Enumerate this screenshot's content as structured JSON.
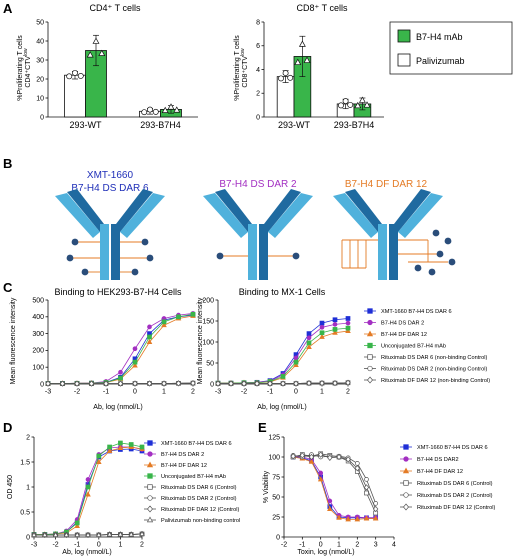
{
  "panels": {
    "A": {
      "label": "A",
      "charts": [
        {
          "type": "bar",
          "title": "CD4⁺ T cells",
          "ylabel": "%Proliferating T cells",
          "ylabel2": "CD4⁺CTV",
          "ylabel2_sup": "low",
          "ylim": [
            0,
            50
          ],
          "yticks": [
            0,
            10,
            20,
            30,
            40,
            50
          ],
          "categories": [
            "293-WT",
            "293-B7H4"
          ],
          "series": [
            {
              "name": "Palivizumab",
              "color": "#ffffff",
              "values": [
                22,
                3
              ],
              "errors": [
                2,
                1.5
              ]
            },
            {
              "name": "B7-H4 mAb",
              "color": "#39b54a",
              "values": [
                35,
                4
              ],
              "errors": [
                8,
                2
              ]
            }
          ]
        },
        {
          "type": "bar",
          "title": "CD8⁺ T cells",
          "ylabel": "%Proliferating T cells",
          "ylabel2": "CD8⁺CTV",
          "ylabel2_sup": "low",
          "ylim": [
            0,
            8
          ],
          "yticks": [
            0,
            2,
            4,
            6,
            8
          ],
          "categories": [
            "293-WT",
            "293-B7H4"
          ],
          "series": [
            {
              "name": "Palivizumab",
              "color": "#ffffff",
              "values": [
                3.4,
                1.1
              ],
              "errors": [
                0.5,
                0.4
              ]
            },
            {
              "name": "B7-H4 mAb",
              "color": "#39b54a",
              "values": [
                5.1,
                1.1
              ],
              "errors": [
                1.7,
                0.5
              ]
            }
          ]
        }
      ],
      "legend": [
        "B7-H4 mAb",
        "Palivizumab"
      ]
    },
    "B": {
      "label": "B",
      "antibodies": [
        {
          "line1": "XMT-1660",
          "line2": "B7-H4 DS DAR 6",
          "color": "#1f2fb8"
        },
        {
          "line1": "",
          "line2": "B7-H4 DS DAR 2",
          "color": "#a32fc2"
        },
        {
          "line1": "",
          "line2": "B7-H4 DF DAR 12",
          "color": "#e47b25"
        }
      ]
    },
    "C": {
      "label": "C",
      "xlabel": "Ab, log (nmol/L)",
      "ylabel": "Mean fluorescence intensity",
      "charts": [
        {
          "type": "line",
          "title": "Binding to HEK293-B7-H4 Cells",
          "xlim": [
            -3,
            2
          ],
          "xticks": [
            -3,
            -2,
            -1,
            0,
            1,
            2
          ],
          "ylim": [
            0,
            500
          ],
          "yticks": [
            0,
            100,
            200,
            300,
            400,
            500
          ],
          "x": [
            -3,
            -2.5,
            -2,
            -1.5,
            -1,
            -0.5,
            0,
            0.5,
            1,
            1.5,
            2
          ],
          "series": [
            {
              "name": "XMT-1660 B7-H4 DS DAR 6",
              "color": "#1f2fd6",
              "marker": "square",
              "values": [
                3,
                3,
                4,
                5,
                10,
                40,
                150,
                300,
                380,
                400,
                410
              ]
            },
            {
              "name": "B7-H4 DS DAR 2",
              "color": "#a32fc2",
              "marker": "circle",
              "values": [
                3,
                3,
                4,
                6,
                15,
                70,
                210,
                340,
                390,
                410,
                420
              ]
            },
            {
              "name": "B7-H4 DF DAR 12",
              "color": "#e47b25",
              "marker": "triangle",
              "values": [
                3,
                3,
                4,
                5,
                8,
                30,
                110,
                250,
                350,
                390,
                405
              ]
            },
            {
              "name": "Unconjugated B7-H4 mAb",
              "color": "#39b54a",
              "marker": "square",
              "values": [
                3,
                3,
                4,
                5,
                9,
                35,
                130,
                280,
                370,
                400,
                415
              ]
            },
            {
              "name": "Rituximab DS DAR 6 (non-binding Control)",
              "color": "#555555",
              "marker": "open-square",
              "values": [
                2,
                2,
                2,
                2,
                2,
                2,
                3,
                3,
                3,
                4,
                5
              ]
            },
            {
              "name": "Rituximab DS DAR 2 (non-binding Control)",
              "color": "#555555",
              "marker": "open-circle",
              "values": [
                2,
                2,
                2,
                2,
                2,
                2,
                3,
                3,
                3,
                4,
                5
              ]
            },
            {
              "name": "Rituximab DF DAR 12 (non-binding Control)",
              "color": "#555555",
              "marker": "open-diamond",
              "values": [
                2,
                2,
                2,
                2,
                2,
                2,
                3,
                3,
                3,
                4,
                5
              ]
            }
          ]
        },
        {
          "type": "line",
          "title": "Binding to MX-1 Cells",
          "xlim": [
            -3,
            2
          ],
          "xticks": [
            -3,
            -2,
            -1,
            0,
            1,
            2
          ],
          "ylim": [
            0,
            200
          ],
          "yticks": [
            0,
            50,
            100,
            150,
            200
          ],
          "x": [
            -3,
            -2.5,
            -2,
            -1.5,
            -1,
            -0.5,
            0,
            0.5,
            1,
            1.5,
            2
          ],
          "series": [
            {
              "name": "XMT-1660 B7-H4 DS DAR 6",
              "color": "#1f2fd6",
              "marker": "square",
              "values": [
                2,
                2,
                3,
                4,
                8,
                25,
                70,
                120,
                145,
                153,
                156
              ]
            },
            {
              "name": "B7-H4 DS DAR 2",
              "color": "#a32fc2",
              "marker": "circle",
              "values": [
                2,
                2,
                3,
                4,
                7,
                22,
                62,
                110,
                135,
                142,
                145
              ]
            },
            {
              "name": "B7-H4 DF DAR 12",
              "color": "#e47b25",
              "marker": "triangle",
              "values": [
                2,
                2,
                3,
                3,
                5,
                15,
                45,
                88,
                112,
                122,
                126
              ]
            },
            {
              "name": "Unconjugated B7-H4 mAb",
              "color": "#39b54a",
              "marker": "square",
              "values": [
                2,
                2,
                3,
                3,
                6,
                18,
                52,
                98,
                122,
                130,
                133
              ]
            },
            {
              "name": "Rituximab DS DAR 6 (non-binding Control)",
              "color": "#555555",
              "marker": "open-square",
              "values": [
                1,
                1,
                1,
                1,
                1,
                1,
                1,
                2,
                2,
                2,
                3
              ]
            },
            {
              "name": "Rituximab DS DAR 2 (non-binding Control)",
              "color": "#555555",
              "marker": "open-circle",
              "values": [
                1,
                1,
                1,
                1,
                1,
                1,
                1,
                2,
                2,
                2,
                3
              ]
            },
            {
              "name": "Rituximab DF DAR 12 (non-binding Control)",
              "color": "#555555",
              "marker": "open-diamond",
              "values": [
                1,
                1,
                1,
                1,
                1,
                1,
                1,
                2,
                2,
                2,
                3
              ]
            }
          ]
        }
      ]
    },
    "D": {
      "label": "D",
      "type": "line",
      "xlabel": "Ab, log (nmol/L)",
      "ylabel": "OD 450",
      "xlim": [
        -3,
        2
      ],
      "xticks": [
        -3,
        -2,
        -1,
        0,
        1,
        2
      ],
      "ylim": [
        0,
        2.0
      ],
      "yticks": [
        0.0,
        0.5,
        1.0,
        1.5,
        2.0
      ],
      "x": [
        -3,
        -2.5,
        -2,
        -1.5,
        -1,
        -0.5,
        0,
        0.5,
        1,
        1.5,
        2
      ],
      "series": [
        {
          "name": "XMT-1660 B7-H4 DS DAR 6",
          "color": "#1f2fd6",
          "marker": "square",
          "values": [
            0.05,
            0.05,
            0.06,
            0.1,
            0.3,
            1.05,
            1.6,
            1.72,
            1.75,
            1.76,
            1.72
          ]
        },
        {
          "name": "B7-H4 DS DAR 2",
          "color": "#a32fc2",
          "marker": "circle",
          "values": [
            0.05,
            0.05,
            0.06,
            0.12,
            0.35,
            1.15,
            1.65,
            1.78,
            1.8,
            1.8,
            1.75
          ]
        },
        {
          "name": "B7-H4 DF DAR 12",
          "color": "#e47b25",
          "marker": "triangle",
          "values": [
            0.05,
            0.05,
            0.06,
            0.08,
            0.22,
            0.85,
            1.5,
            1.72,
            1.78,
            1.8,
            1.76
          ]
        },
        {
          "name": "Unconjugated B7-H4 mAb",
          "color": "#39b54a",
          "marker": "square",
          "values": [
            0.05,
            0.05,
            0.06,
            0.1,
            0.28,
            1.0,
            1.62,
            1.8,
            1.88,
            1.85,
            1.8
          ]
        },
        {
          "name": "Rituximab DS DAR 6 (Control)",
          "color": "#555555",
          "marker": "open-square",
          "values": [
            0.04,
            0.04,
            0.04,
            0.04,
            0.04,
            0.04,
            0.04,
            0.05,
            0.05,
            0.05,
            0.06
          ]
        },
        {
          "name": "Rituximab DS DAR 2 (Control)",
          "color": "#555555",
          "marker": "open-circle",
          "values": [
            0.04,
            0.04,
            0.04,
            0.04,
            0.04,
            0.04,
            0.04,
            0.05,
            0.05,
            0.05,
            0.06
          ]
        },
        {
          "name": "Rituximab DF DAR 12 (Control)",
          "color": "#555555",
          "marker": "open-diamond",
          "values": [
            0.04,
            0.04,
            0.04,
            0.04,
            0.04,
            0.04,
            0.04,
            0.05,
            0.05,
            0.05,
            0.06
          ]
        },
        {
          "name": "Palivizumab non-binding control",
          "color": "#555555",
          "marker": "open-triangle",
          "values": [
            0.04,
            0.04,
            0.04,
            0.04,
            0.04,
            0.04,
            0.04,
            0.05,
            0.05,
            0.05,
            0.06
          ]
        }
      ]
    },
    "E": {
      "label": "E",
      "type": "line",
      "xlabel": "Toxin, log (nmol/L)",
      "ylabel": "% Viability",
      "xlim": [
        -2,
        4
      ],
      "xticks": [
        -2,
        -1,
        0,
        1,
        2,
        3,
        4
      ],
      "ylim": [
        0,
        125
      ],
      "yticks": [
        0,
        25,
        50,
        75,
        100,
        125
      ],
      "x": [
        -1.5,
        -1,
        -0.5,
        0,
        0.5,
        1,
        1.5,
        2,
        2.5,
        3
      ],
      "series": [
        {
          "name": "XMT-1660 B7-H4 DS DAR 6",
          "color": "#1f2fd6",
          "marker": "square",
          "values": [
            100,
            99,
            95,
            75,
            38,
            25,
            24,
            24,
            24,
            24
          ]
        },
        {
          "name": "B7-H4 DS DAR2",
          "color": "#a32fc2",
          "marker": "circle",
          "values": [
            101,
            100,
            97,
            80,
            45,
            27,
            25,
            25,
            24,
            24
          ]
        },
        {
          "name": "B7-H4 DF DAR 12",
          "color": "#e47b25",
          "marker": "triangle",
          "values": [
            100,
            98,
            94,
            72,
            35,
            24,
            22,
            22,
            23,
            23
          ]
        },
        {
          "name": "Rituximab DS DAR 6 (Control)",
          "color": "#555555",
          "marker": "open-square",
          "values": [
            100,
            103,
            101,
            104,
            102,
            100,
            95,
            82,
            55,
            30
          ]
        },
        {
          "name": "Rituximab DS DAR 2 (Control)",
          "color": "#555555",
          "marker": "open-circle",
          "values": [
            102,
            100,
            103,
            100,
            101,
            101,
            99,
            92,
            72,
            42
          ]
        },
        {
          "name": "Rituximab DF DAR 12 (Control)",
          "color": "#555555",
          "marker": "open-diamond",
          "values": [
            101,
            102,
            100,
            103,
            99,
            100,
            97,
            86,
            62,
            35
          ]
        }
      ]
    }
  }
}
